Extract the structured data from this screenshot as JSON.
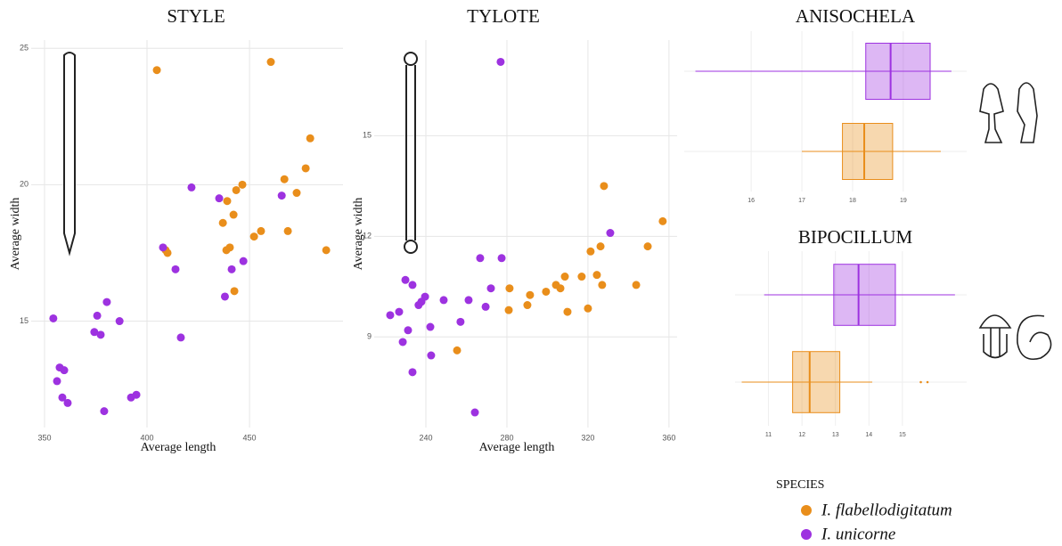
{
  "legend_title": "SPECIES",
  "chart_data": [
    {
      "type": "scatter",
      "title": "STYLE",
      "x_label": "Average length",
      "y_label": "Average width",
      "xlim": [
        343.5,
        495.6
      ],
      "ylim": [
        11.1,
        25.3
      ],
      "xticks": [
        350,
        400,
        450
      ],
      "yticks": [
        15,
        20,
        25
      ],
      "grid": true,
      "series": [
        {
          "name": "I. flabellodigitatum",
          "color": "#e98e1b",
          "x": [
            404.8,
            460.4,
            479.6,
            477.4,
            467,
            473,
            446.5,
            443.5,
            439.1,
            442.2,
            437,
            455.6,
            452.2,
            468.7,
            440.4,
            438.7,
            487.4,
            409.1,
            410,
            442.6
          ],
          "y": [
            24.2,
            24.5,
            21.7,
            20.6,
            20.2,
            19.7,
            20.0,
            19.8,
            19.4,
            18.9,
            18.6,
            18.3,
            18.1,
            18.3,
            17.7,
            17.6,
            17.6,
            17.6,
            17.5,
            16.1
          ]
        },
        {
          "name": "I. unicorne",
          "color": "#9d32e0",
          "x": [
            421.7,
            435.2,
            465.7,
            407.8,
            413.9,
            441.3,
            447,
            438,
            416.5,
            354.3,
            380.4,
            375.7,
            386.6,
            374.3,
            377.4,
            357.4,
            359.6,
            356.1,
            358.7,
            361.3,
            379.1,
            392.2,
            394.8
          ],
          "y": [
            19.9,
            19.5,
            19.6,
            17.7,
            16.9,
            16.9,
            17.2,
            15.9,
            14.4,
            15.1,
            15.7,
            15.2,
            15.0,
            14.6,
            14.5,
            13.3,
            13.2,
            12.8,
            12.2,
            12.0,
            11.7,
            12.2,
            12.3
          ]
        }
      ]
    },
    {
      "type": "scatter",
      "title": "TYLOTE",
      "x_label": "Average length",
      "y_label": "Average width",
      "xlim": [
        214.5,
        364
      ],
      "ylim": [
        6.3,
        17.85
      ],
      "xticks": [
        240,
        280,
        320,
        360
      ],
      "yticks": [
        9,
        12,
        15
      ],
      "grid": true,
      "series": [
        {
          "name": "I. flabellodigitatum",
          "color": "#e98e1b",
          "x": [
            356.9,
            349.5,
            343.8,
            327.9,
            326.2,
            321.3,
            327,
            324.4,
            316.9,
            308.6,
            306.4,
            304.2,
            299.3,
            291.4,
            290.1,
            281.3,
            280.9,
            309.9,
            320,
            255.4
          ],
          "y": [
            12.45,
            11.7,
            10.55,
            13.5,
            11.7,
            11.55,
            10.55,
            10.85,
            10.8,
            10.8,
            10.45,
            10.55,
            10.35,
            10.25,
            9.95,
            10.45,
            9.8,
            9.75,
            9.85,
            8.6
          ]
        },
        {
          "name": "I. unicorne",
          "color": "#9d32e0",
          "x": [
            276.9,
            331,
            266.8,
            277.4,
            272.1,
            269.5,
            261.1,
            257.1,
            248.8,
            239.6,
            237.8,
            236.4,
            229.9,
            233.4,
            226.8,
            222.4,
            231.2,
            242.2,
            228.6,
            242.6,
            233.4,
            264.2
          ],
          "y": [
            17.2,
            12.1,
            11.35,
            11.35,
            10.45,
            9.9,
            10.1,
            9.45,
            10.1,
            10.2,
            10.05,
            9.95,
            10.7,
            10.55,
            9.75,
            9.65,
            9.2,
            9.3,
            8.85,
            8.45,
            7.95,
            6.75
          ]
        }
      ]
    },
    {
      "type": "box",
      "title": "ANISOCHELA",
      "xlim": [
        14.68,
        20.25
      ],
      "xticks": [
        16,
        17,
        18,
        19
      ],
      "grid": true,
      "series": [
        {
          "name": "I. unicorne",
          "color": "#9d32e0",
          "whislo": 14.9,
          "q1": 18.26,
          "med": 18.75,
          "q3": 19.53,
          "whishi": 19.95,
          "outliers": []
        },
        {
          "name": "I. flabellodigitatum",
          "color": "#e98e1b",
          "whislo": 17.0,
          "q1": 17.8,
          "med": 18.23,
          "q3": 18.79,
          "whishi": 19.74,
          "outliers": []
        }
      ]
    },
    {
      "type": "box",
      "title": "BIPOCILLUM",
      "xlim": [
        10,
        16.92
      ],
      "xticks": [
        11,
        12,
        13,
        14,
        15
      ],
      "grid": true,
      "series": [
        {
          "name": "I. unicorne",
          "color": "#9d32e0",
          "whislo": 10.87,
          "q1": 12.95,
          "med": 13.69,
          "q3": 14.79,
          "whishi": 16.57,
          "outliers": []
        },
        {
          "name": "I. flabellodigitatum",
          "color": "#e98e1b",
          "whislo": 10.2,
          "q1": 11.72,
          "med": 12.23,
          "q3": 13.13,
          "whishi": 14.1,
          "outliers": [
            15.55,
            15.75
          ]
        }
      ]
    }
  ]
}
